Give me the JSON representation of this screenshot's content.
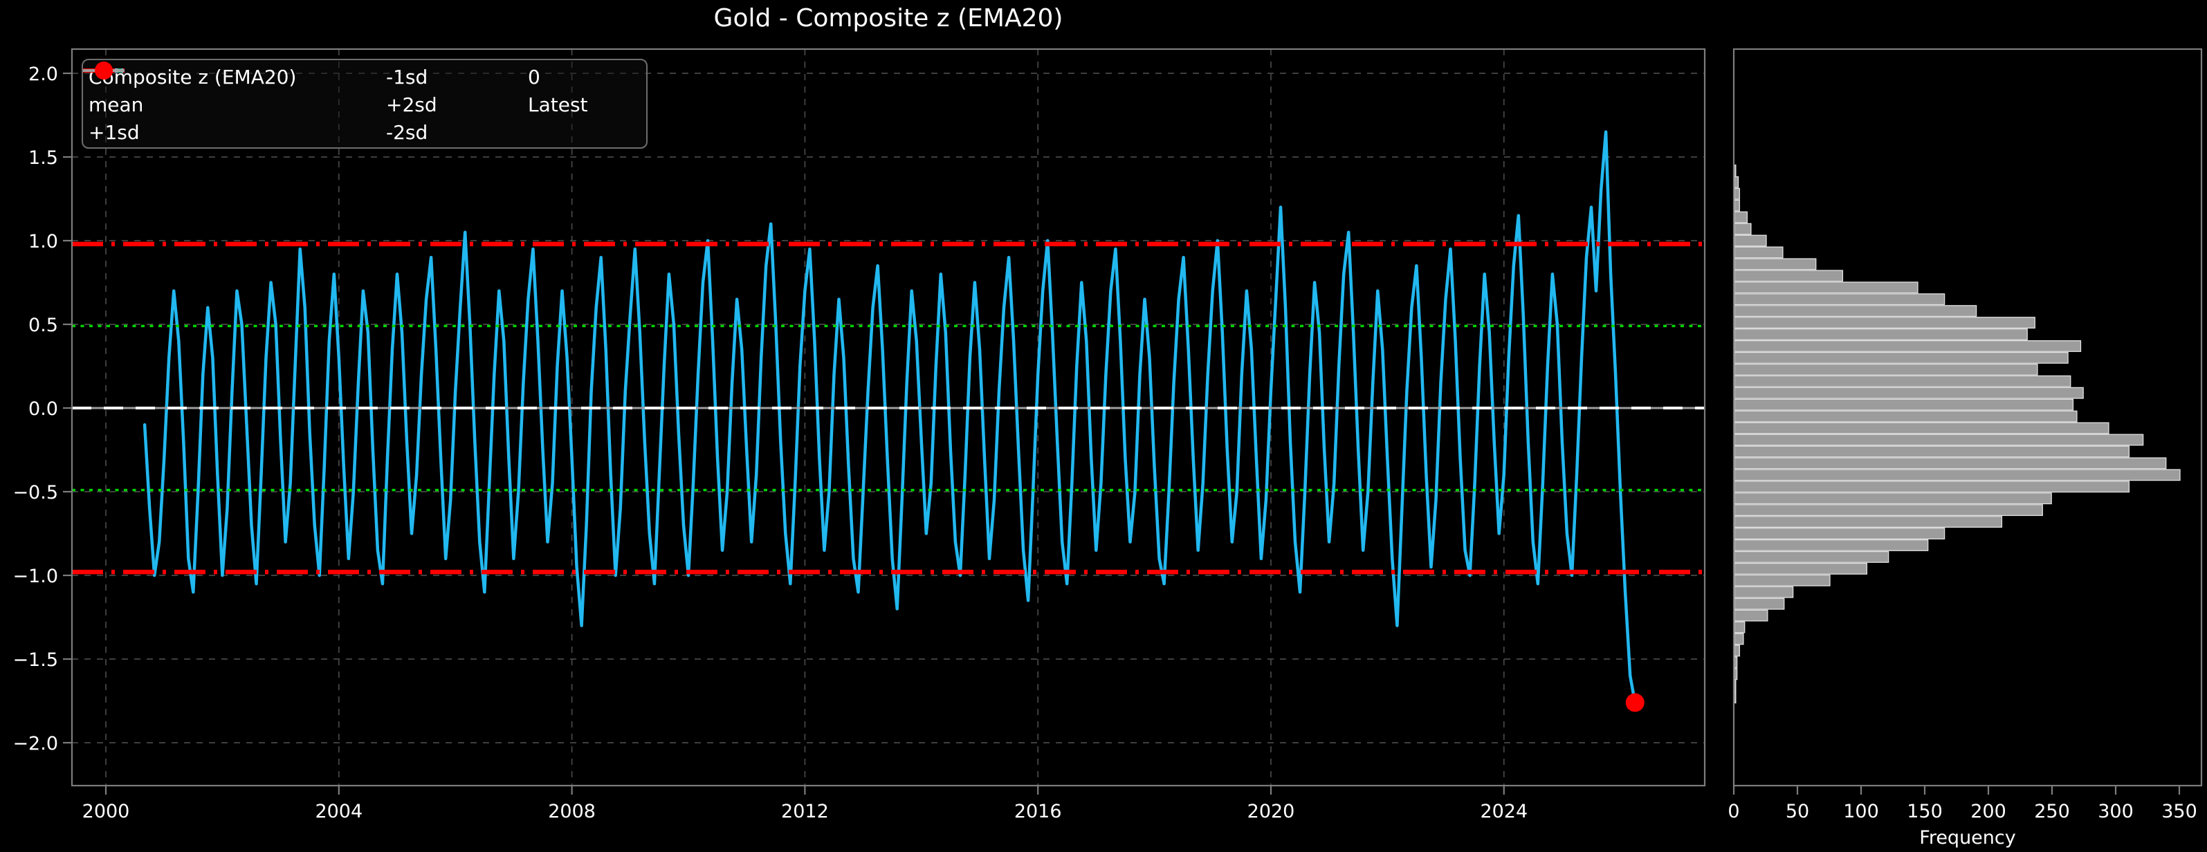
{
  "title": "Gold - Composite z (EMA20)",
  "colors": {
    "background": "#000000",
    "text": "#ffffff",
    "spine": "#7d7d7d",
    "grid": "#484848",
    "series": "#22b8f0",
    "mean": "#ffffff",
    "sd1": "#00d400",
    "sd2": "#ff0000",
    "zero": "#9e9e9e",
    "latest": "#ff0000",
    "hist_fill": "#9c9c9c",
    "hist_edge": "#e0e0e0"
  },
  "legend": {
    "entries": [
      {
        "label": "Composite z (EMA20)",
        "kind": "line",
        "dash": "solid",
        "color": "#22b8f0",
        "width": 6
      },
      {
        "label": "mean",
        "kind": "line",
        "dash": "dashed",
        "color": "#ffffff",
        "width": 5
      },
      {
        "label": "+1sd",
        "kind": "line",
        "dash": "dotted",
        "color": "#00d400",
        "width": 5
      },
      {
        "label": "-1sd",
        "kind": "line",
        "dash": "dotted",
        "color": "#00d400",
        "width": 5
      },
      {
        "label": "+2sd",
        "kind": "line",
        "dash": "dashdot",
        "color": "#ff0000",
        "width": 6
      },
      {
        "label": "-2sd",
        "kind": "line",
        "dash": "dashdot",
        "color": "#ff0000",
        "width": 6
      },
      {
        "label": "0",
        "kind": "line",
        "dash": "solid",
        "color": "#9e9e9e",
        "width": 4
      },
      {
        "label": "Latest",
        "kind": "marker",
        "dash": "none",
        "color": "#ff0000",
        "width": 0
      }
    ]
  },
  "chart_data": [
    {
      "type": "line",
      "title": "Gold - Composite z (EMA20)",
      "xlabel": "",
      "ylabel": "",
      "x_ticks": [
        2000,
        2004,
        2008,
        2012,
        2016,
        2020,
        2024
      ],
      "y_ticks": [
        2.0,
        1.5,
        1.0,
        0.5,
        0.0,
        -0.5,
        -1.0,
        -1.5,
        -2.0
      ],
      "xlim": [
        1999.42,
        2027.45
      ],
      "ylim": [
        -2.26,
        2.15
      ],
      "grid": true,
      "legend_position": "upper left",
      "reference_lines": [
        {
          "label": "0",
          "value": 0.0,
          "style": "solid",
          "color": "#9e9e9e"
        },
        {
          "label": "mean",
          "value": 0.0,
          "style": "dashed",
          "color": "#ffffff"
        },
        {
          "label": "+1sd",
          "value": 0.49,
          "style": "dotted",
          "color": "#00d400"
        },
        {
          "label": "-1sd",
          "value": -0.49,
          "style": "dotted",
          "color": "#00d400"
        },
        {
          "label": "+2sd",
          "value": 0.98,
          "style": "dashdot",
          "color": "#ff0000"
        },
        {
          "label": "-2sd",
          "value": -0.98,
          "style": "dashdot",
          "color": "#ff0000"
        }
      ],
      "series": {
        "name": "Composite z (EMA20)",
        "x_start": 2000.6667,
        "x_step": 0.08333,
        "values": [
          -0.1,
          -0.6,
          -1.0,
          -0.8,
          -0.3,
          0.3,
          0.7,
          0.4,
          -0.2,
          -0.9,
          -1.1,
          -0.5,
          0.2,
          0.6,
          0.3,
          -0.4,
          -1.0,
          -0.6,
          0.1,
          0.7,
          0.5,
          -0.1,
          -0.7,
          -1.05,
          -0.4,
          0.3,
          0.75,
          0.5,
          -0.2,
          -0.8,
          -0.45,
          0.25,
          0.95,
          0.6,
          -0.15,
          -0.7,
          -1.0,
          -0.35,
          0.4,
          0.8,
          0.3,
          -0.35,
          -0.9,
          -0.5,
          0.15,
          0.7,
          0.45,
          -0.25,
          -0.85,
          -1.05,
          -0.3,
          0.35,
          0.8,
          0.45,
          -0.2,
          -0.75,
          -0.4,
          0.2,
          0.65,
          0.9,
          0.35,
          -0.3,
          -0.9,
          -0.55,
          0.1,
          0.6,
          1.05,
          0.5,
          -0.2,
          -0.8,
          -1.1,
          -0.45,
          0.2,
          0.7,
          0.4,
          -0.3,
          -0.9,
          -0.5,
          0.15,
          0.65,
          0.95,
          0.4,
          -0.25,
          -0.8,
          -0.45,
          0.25,
          0.7,
          0.3,
          -0.3,
          -0.95,
          -1.3,
          -0.7,
          0.1,
          0.6,
          0.9,
          0.35,
          -0.4,
          -1.0,
          -0.6,
          0.1,
          0.55,
          0.95,
          0.45,
          -0.2,
          -0.75,
          -1.05,
          -0.4,
          0.25,
          0.8,
          0.5,
          -0.15,
          -0.7,
          -1.0,
          -0.45,
          0.2,
          0.75,
          1.0,
          0.4,
          -0.3,
          -0.85,
          -0.5,
          0.15,
          0.65,
          0.35,
          -0.25,
          -0.8,
          -0.4,
          0.3,
          0.85,
          1.1,
          0.5,
          -0.2,
          -0.75,
          -1.05,
          -0.45,
          0.25,
          0.7,
          0.95,
          0.4,
          -0.3,
          -0.85,
          -0.5,
          0.2,
          0.65,
          0.3,
          -0.35,
          -0.9,
          -1.1,
          -0.5,
          0.1,
          0.6,
          0.85,
          0.35,
          -0.3,
          -0.9,
          -1.2,
          -0.55,
          0.15,
          0.7,
          0.4,
          -0.2,
          -0.75,
          -0.45,
          0.25,
          0.8,
          0.45,
          -0.25,
          -0.8,
          -1.0,
          -0.4,
          0.3,
          0.75,
          0.35,
          -0.3,
          -0.9,
          -0.55,
          0.1,
          0.6,
          0.9,
          0.4,
          -0.25,
          -0.85,
          -1.15,
          -0.5,
          0.2,
          0.7,
          1.0,
          0.45,
          -0.2,
          -0.8,
          -1.05,
          -0.45,
          0.25,
          0.75,
          0.4,
          -0.3,
          -0.85,
          -0.45,
          0.2,
          0.7,
          0.95,
          0.4,
          -0.3,
          -0.8,
          -0.5,
          0.2,
          0.65,
          0.3,
          -0.35,
          -0.9,
          -1.05,
          -0.5,
          0.15,
          0.65,
          0.9,
          0.35,
          -0.3,
          -0.85,
          -0.45,
          0.2,
          0.7,
          1.0,
          0.45,
          -0.25,
          -0.8,
          -0.5,
          0.2,
          0.7,
          0.35,
          -0.3,
          -0.9,
          -0.55,
          0.1,
          0.65,
          1.2,
          0.6,
          -0.2,
          -0.8,
          -1.1,
          -0.5,
          0.2,
          0.75,
          0.45,
          -0.25,
          -0.8,
          -0.45,
          0.25,
          0.8,
          1.05,
          0.45,
          -0.25,
          -0.85,
          -0.5,
          0.15,
          0.7,
          0.35,
          -0.3,
          -0.9,
          -1.3,
          -0.6,
          0.1,
          0.6,
          0.85,
          0.3,
          -0.4,
          -0.95,
          -0.55,
          0.15,
          0.65,
          0.95,
          0.4,
          -0.3,
          -0.85,
          -1.0,
          -0.45,
          0.25,
          0.8,
          0.45,
          -0.2,
          -0.75,
          -0.4,
          0.3,
          0.85,
          1.15,
          0.55,
          -0.2,
          -0.8,
          -1.05,
          -0.45,
          0.25,
          0.8,
          0.5,
          -0.2,
          -0.75,
          -1.0,
          -0.4,
          0.3,
          0.9,
          1.2,
          0.7,
          1.3,
          1.65,
          0.8,
          0.2,
          -0.5,
          -1.1,
          -1.6,
          -1.76
        ]
      },
      "latest_point": {
        "x": 2026.25,
        "y": -1.76,
        "marker": "circle",
        "color": "#ff0000"
      }
    },
    {
      "type": "bar",
      "orientation": "horizontal",
      "xlabel": "Frequency",
      "x_ticks": [
        0,
        50,
        100,
        150,
        200,
        250,
        300,
        350
      ],
      "xlim": [
        0,
        367
      ],
      "bin_z_top": 1.42,
      "bin_dz": 0.07,
      "frequencies": [
        1,
        3,
        4,
        4,
        10,
        13,
        25,
        38,
        64,
        85,
        144,
        165,
        190,
        236,
        230,
        272,
        262,
        238,
        264,
        274,
        266,
        269,
        294,
        321,
        310,
        339,
        350,
        310,
        249,
        242,
        210,
        165,
        152,
        121,
        104,
        75,
        46,
        39,
        26,
        8,
        7,
        4,
        2,
        2,
        1,
        1
      ]
    }
  ]
}
